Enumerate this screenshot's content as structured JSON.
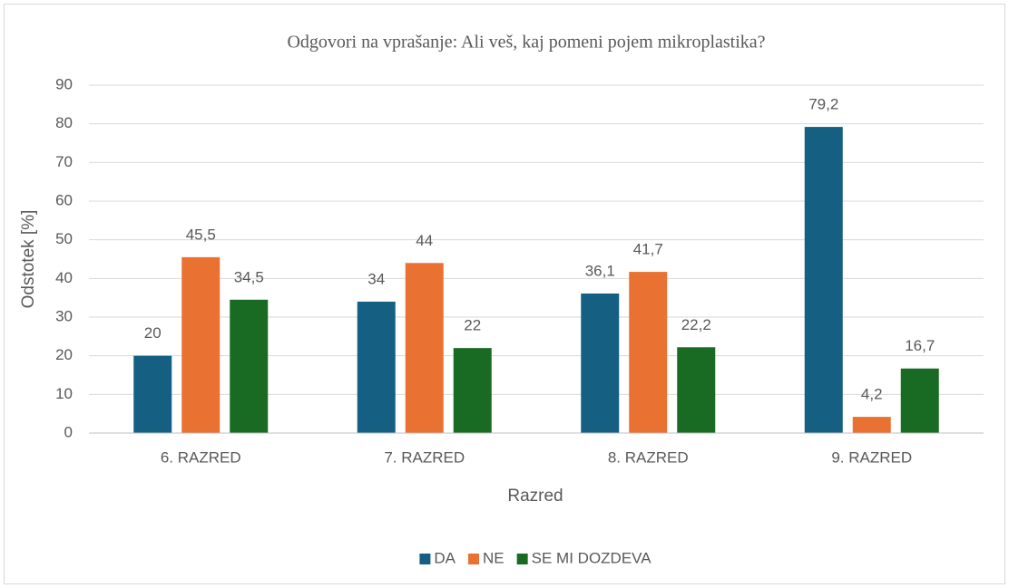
{
  "chart_data": {
    "type": "bar",
    "title": "Odgovori na vprašanje: Ali veš, kaj pomeni pojem mikroplastika?",
    "x_label": "Razred",
    "y_label": "Odstotek [%]",
    "categories": [
      "6. RAZRED",
      "7. RAZRED",
      "8. RAZRED",
      "9. RAZRED"
    ],
    "series": [
      {
        "name": "DA",
        "color": "#156082",
        "values": [
          20,
          34,
          36.1,
          79.2
        ],
        "value_labels": [
          "20",
          "34",
          "36,1",
          "79,2"
        ]
      },
      {
        "name": "NE",
        "color": "#e97132",
        "values": [
          45.5,
          44,
          41.7,
          4.2
        ],
        "value_labels": [
          "45,5",
          "44",
          "41,7",
          "4,2"
        ]
      },
      {
        "name": "SE MI DOZDEVA",
        "color": "#196b24",
        "values": [
          34.5,
          22,
          22.2,
          16.7
        ],
        "value_labels": [
          "34,5",
          "22",
          "22,2",
          "16,7"
        ]
      }
    ],
    "ylim": [
      0,
      90
    ],
    "yticks": [
      0,
      10,
      20,
      30,
      40,
      50,
      60,
      70,
      80,
      90
    ],
    "grid": true,
    "legend": "bottom"
  }
}
